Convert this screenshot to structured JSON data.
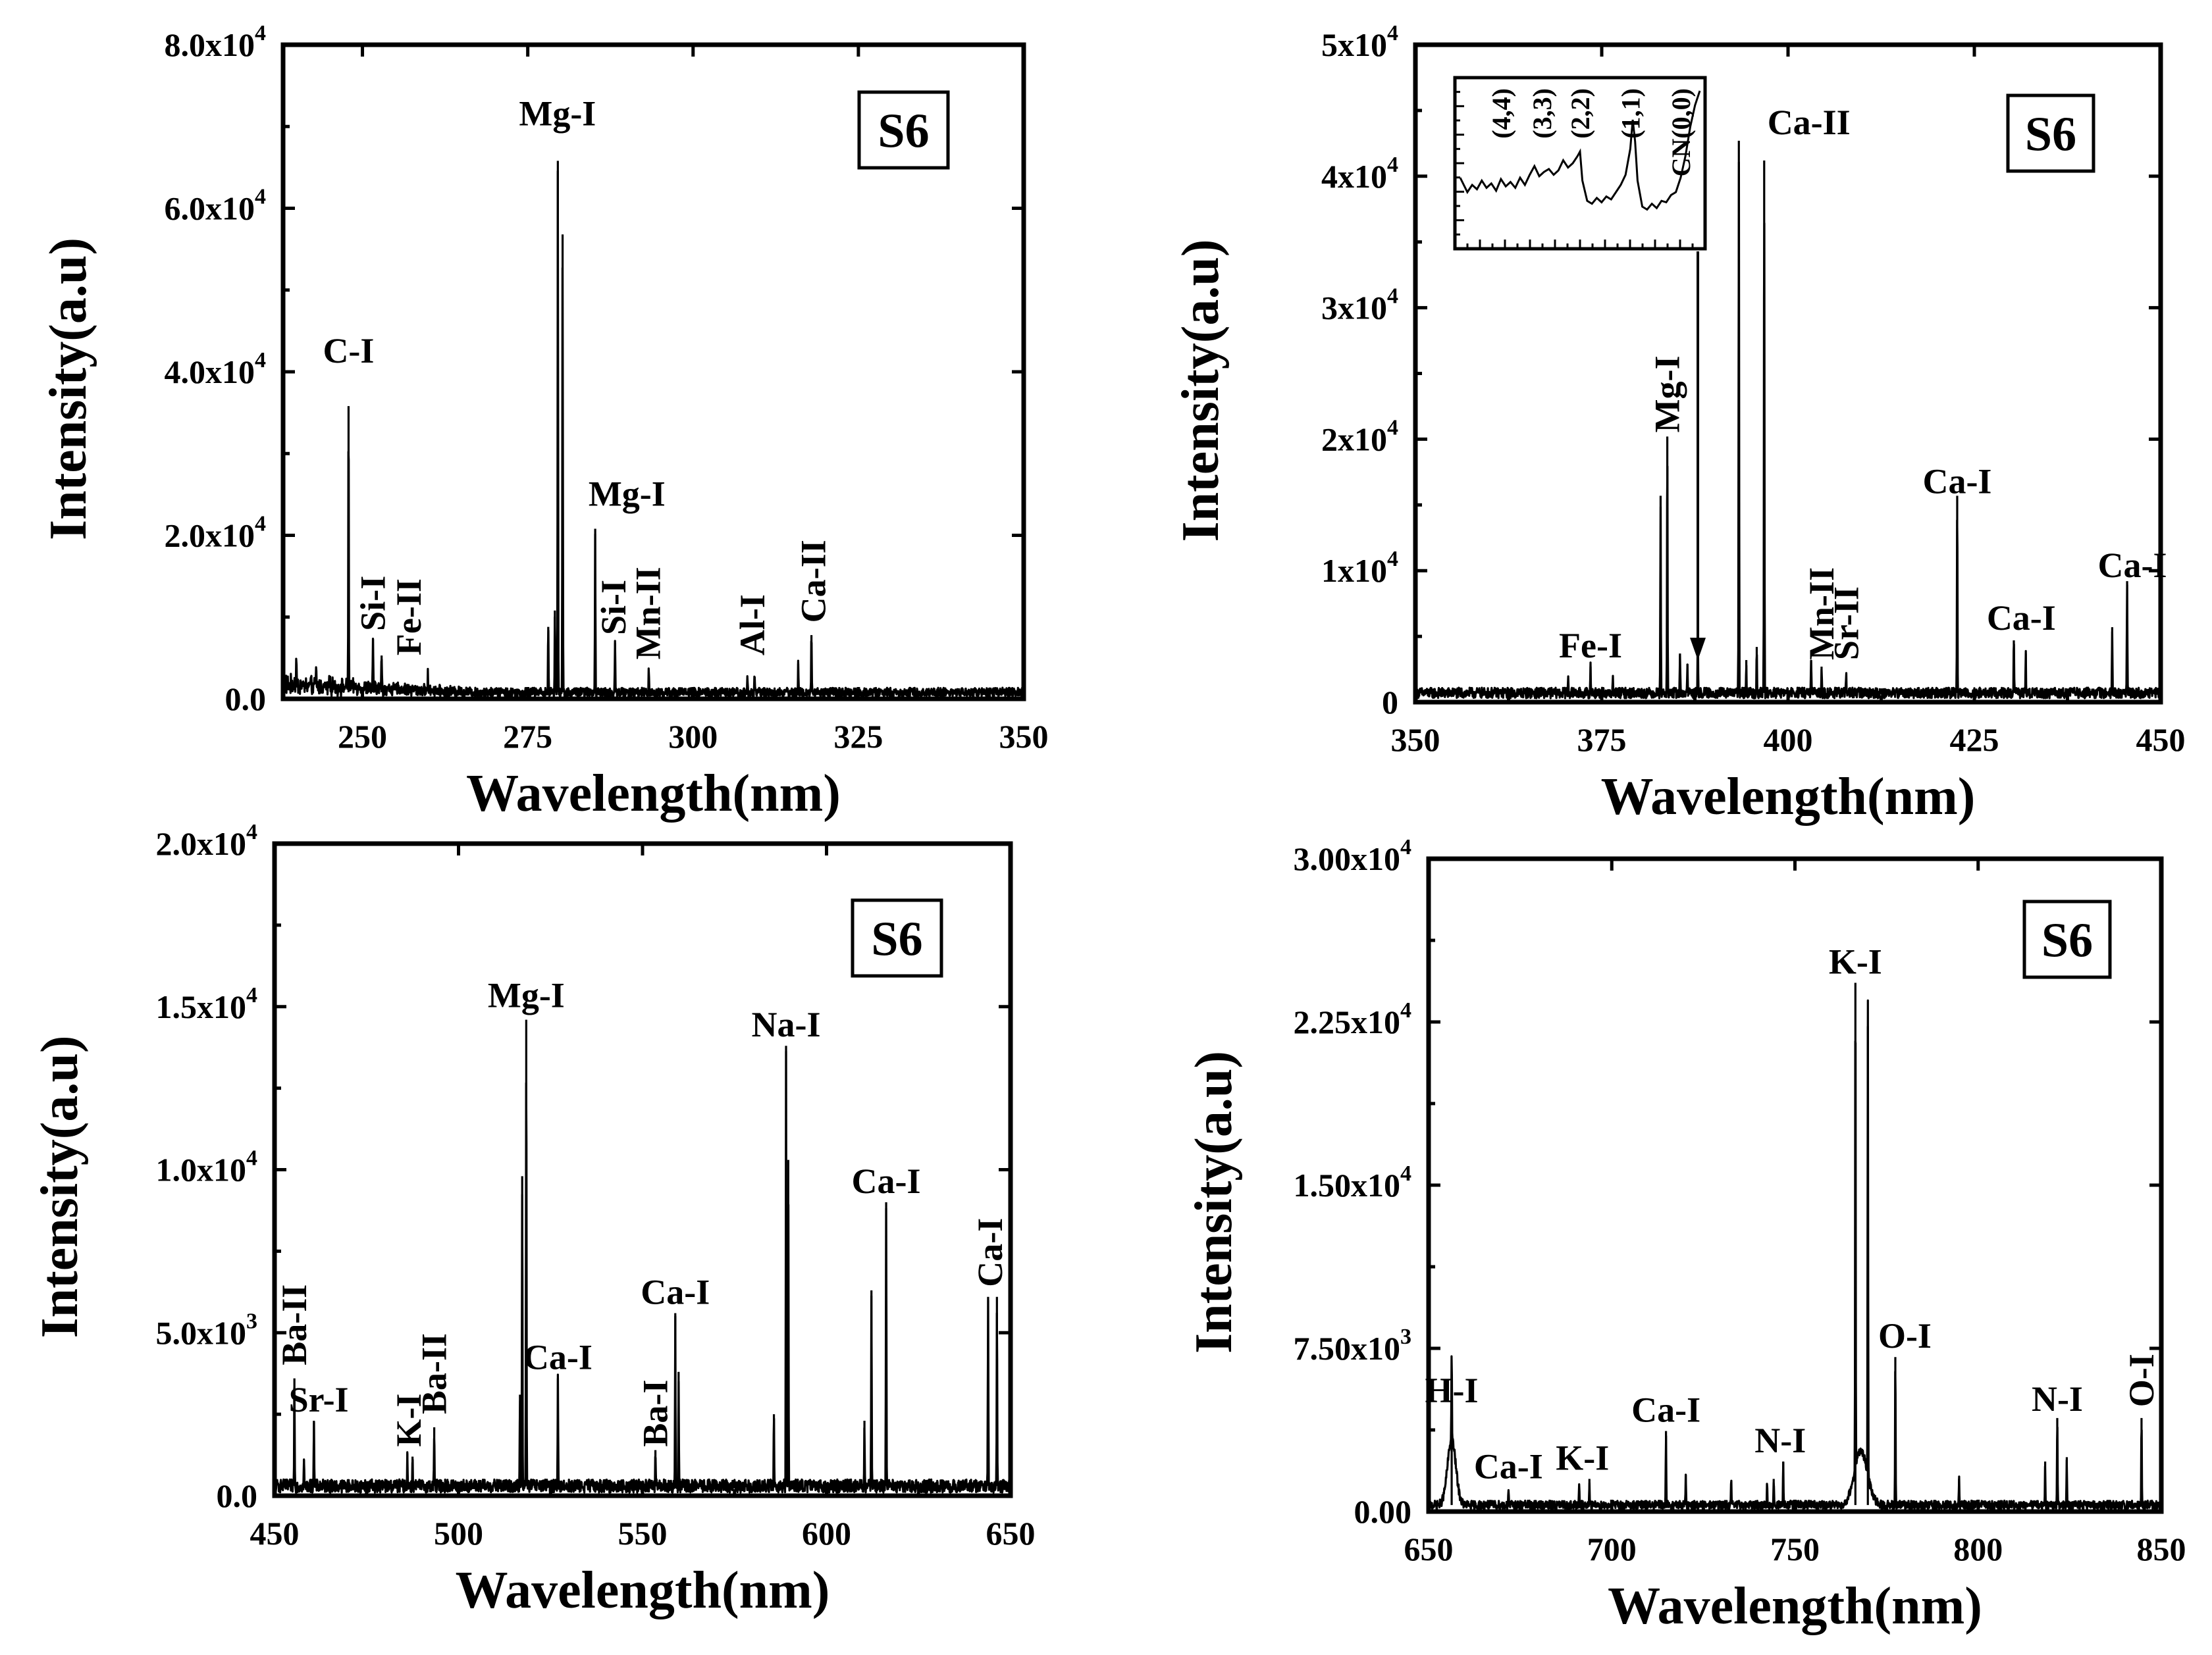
{
  "chart_data": [
    {
      "type": "line",
      "badge": "S6",
      "xlabel": "Wavelength(nm)",
      "ylabel": "Intensity(a.u)",
      "xlim": [
        238,
        350
      ],
      "ylim": [
        0,
        80000
      ],
      "xticks": [
        250,
        275,
        300,
        325,
        350
      ],
      "yticks": [
        {
          "value": 0,
          "mant": "0.0",
          "exp": ""
        },
        {
          "value": 20000,
          "mant": "2.0x10",
          "exp": "4"
        },
        {
          "value": 40000,
          "mant": "4.0x10",
          "exp": "4"
        },
        {
          "value": 60000,
          "mant": "6.0x10",
          "exp": "4"
        },
        {
          "value": 80000,
          "mant": "8.0x10",
          "exp": "4"
        }
      ],
      "baseline": 800,
      "noise": 700,
      "peaks": [
        [
          240,
          3000
        ],
        [
          243,
          2500
        ],
        [
          245,
          2000
        ],
        [
          247.9,
          35000
        ],
        [
          251.6,
          6500
        ],
        [
          252.9,
          4500
        ],
        [
          259.9,
          2000
        ],
        [
          278.1,
          8000
        ],
        [
          279.1,
          10000
        ],
        [
          279.55,
          65000
        ],
        [
          280.27,
          56000
        ],
        [
          285.2,
          20000
        ],
        [
          288.2,
          6000
        ],
        [
          293.3,
          3000
        ],
        [
          308.2,
          2000
        ],
        [
          309.3,
          2500
        ],
        [
          315.9,
          3500
        ],
        [
          317.9,
          7000
        ]
      ],
      "labels": [
        {
          "text": "C-I",
          "x": 247.9,
          "y": 40000,
          "rot": false
        },
        {
          "text": "Mg-I",
          "x": 279.5,
          "y": 69000,
          "rot": false
        },
        {
          "text": "Mg-I",
          "x": 290.0,
          "y": 22500,
          "rot": false
        },
        {
          "text": "Si-I",
          "x": 251.6,
          "y": 7500,
          "rot": true
        },
        {
          "text": "Fe-II",
          "x": 257.0,
          "y": 4500,
          "rot": true
        },
        {
          "text": "Si-I",
          "x": 288.0,
          "y": 7000,
          "rot": true
        },
        {
          "text": "Mn-II",
          "x": 293.2,
          "y": 4000,
          "rot": true
        },
        {
          "text": "Al-I",
          "x": 309.0,
          "y": 4500,
          "rot": true
        },
        {
          "text": "Ca-II",
          "x": 318.2,
          "y": 8500,
          "rot": true
        }
      ]
    },
    {
      "type": "line",
      "badge": "S6",
      "xlabel": "Wavelength(nm)",
      "ylabel": "Intensity(a.u)",
      "xlim": [
        350,
        450
      ],
      "ylim": [
        0,
        50000
      ],
      "xticks": [
        350,
        375,
        400,
        425,
        450
      ],
      "yticks": [
        {
          "value": 0,
          "mant": "0",
          "exp": ""
        },
        {
          "value": 10000,
          "mant": "1x10",
          "exp": "4"
        },
        {
          "value": 20000,
          "mant": "2x10",
          "exp": "4"
        },
        {
          "value": 30000,
          "mant": "3x10",
          "exp": "4"
        },
        {
          "value": 40000,
          "mant": "4x10",
          "exp": "4"
        },
        {
          "value": 50000,
          "mant": "5x10",
          "exp": "4"
        }
      ],
      "baseline": 700,
      "noise": 500,
      "peaks": [
        [
          370.5,
          1200
        ],
        [
          373.5,
          2000
        ],
        [
          376.5,
          1000
        ],
        [
          382.9,
          15000
        ],
        [
          383.8,
          19500
        ],
        [
          385.5,
          3000
        ],
        [
          386.5,
          2200
        ],
        [
          387.9,
          5000
        ],
        [
          393.4,
          42000
        ],
        [
          394.4,
          2500
        ],
        [
          395.8,
          3500
        ],
        [
          396.8,
          40500
        ],
        [
          403.1,
          2500
        ],
        [
          404.5,
          2000
        ],
        [
          407.8,
          1800
        ],
        [
          422.7,
          15000
        ],
        [
          430.3,
          4000
        ],
        [
          431.9,
          3000
        ],
        [
          443.5,
          5000
        ],
        [
          445.5,
          8500
        ]
      ],
      "labels": [
        {
          "text": "Fe-I",
          "x": 373.5,
          "y": 2700,
          "rot": false
        },
        {
          "text": "Mg-I",
          "x": 383.8,
          "y": 20000,
          "rot": true
        },
        {
          "text": "Ca-II",
          "x": 402.8,
          "y": 42500,
          "rot": false
        },
        {
          "text": "Mn-II",
          "x": 404.5,
          "y": 2700,
          "rot": true
        },
        {
          "text": "Sr-II",
          "x": 407.8,
          "y": 2700,
          "rot": true
        },
        {
          "text": "Ca-I",
          "x": 422.7,
          "y": 15200,
          "rot": false
        },
        {
          "text": "Ca-I",
          "x": 431.3,
          "y": 4800,
          "rot": false
        },
        {
          "text": "Ca-I",
          "x": 446.2,
          "y": 8800,
          "rot": false
        }
      ],
      "inset": {
        "xlim": [
          0,
          100
        ],
        "ylim": [
          0,
          100
        ],
        "points": [
          [
            0,
            40
          ],
          [
            3,
            30
          ],
          [
            5,
            35
          ],
          [
            7,
            32
          ],
          [
            9,
            38
          ],
          [
            11,
            33
          ],
          [
            13,
            36
          ],
          [
            15,
            31
          ],
          [
            17,
            39
          ],
          [
            19,
            34
          ],
          [
            21,
            37
          ],
          [
            23,
            33
          ],
          [
            25,
            40
          ],
          [
            27,
            35
          ],
          [
            29,
            42
          ],
          [
            31,
            48
          ],
          [
            33,
            41
          ],
          [
            35,
            44
          ],
          [
            37,
            46
          ],
          [
            39,
            42
          ],
          [
            41,
            45
          ],
          [
            43,
            52
          ],
          [
            45,
            47
          ],
          [
            47,
            50
          ],
          [
            49,
            55
          ],
          [
            50,
            58
          ],
          [
            51,
            38
          ],
          [
            53,
            24
          ],
          [
            55,
            22
          ],
          [
            57,
            26
          ],
          [
            59,
            23
          ],
          [
            61,
            27
          ],
          [
            63,
            25
          ],
          [
            65,
            30
          ],
          [
            67,
            35
          ],
          [
            69,
            42
          ],
          [
            71,
            60
          ],
          [
            72,
            80
          ],
          [
            73,
            65
          ],
          [
            74,
            38
          ],
          [
            76,
            20
          ],
          [
            78,
            18
          ],
          [
            80,
            22
          ],
          [
            82,
            19
          ],
          [
            84,
            24
          ],
          [
            86,
            23
          ],
          [
            88,
            28
          ],
          [
            90,
            30
          ],
          [
            92,
            40
          ],
          [
            94,
            55
          ],
          [
            96,
            75
          ],
          [
            98,
            90
          ],
          [
            100,
            100
          ]
        ],
        "labels": [
          {
            "text": "(4,4)",
            "x": 17
          },
          {
            "text": "(3,3)",
            "x": 34
          },
          {
            "text": "(2,2)",
            "x": 50
          },
          {
            "text": "(1,1)",
            "x": 71
          },
          {
            "text": "CN(0,0)",
            "x": 92
          }
        ]
      }
    },
    {
      "type": "line",
      "badge": "S6",
      "xlabel": "Wavelength(nm)",
      "ylabel": "Intensity(a.u)",
      "xlim": [
        450,
        650
      ],
      "ylim": [
        0,
        20000
      ],
      "xticks": [
        450,
        500,
        550,
        600,
        650
      ],
      "yticks": [
        {
          "value": 0,
          "mant": "0.0",
          "exp": ""
        },
        {
          "value": 5000,
          "mant": "5.0x10",
          "exp": "3"
        },
        {
          "value": 10000,
          "mant": "1.0x10",
          "exp": "4"
        },
        {
          "value": 15000,
          "mant": "1.5x10",
          "exp": "4"
        },
        {
          "value": 20000,
          "mant": "2.0x10",
          "exp": "4"
        }
      ],
      "baseline": 300,
      "noise": 250,
      "peaks": [
        [
          455.4,
          3300
        ],
        [
          458.0,
          800
        ],
        [
          460.7,
          2000
        ],
        [
          486.1,
          1000
        ],
        [
          487.5,
          900
        ],
        [
          493.4,
          1800
        ],
        [
          516.7,
          2800
        ],
        [
          517.3,
          9500
        ],
        [
          518.4,
          14300
        ],
        [
          527.0,
          3300
        ],
        [
          553.5,
          1100
        ],
        [
          558.9,
          5300
        ],
        [
          559.8,
          3500
        ],
        [
          585.7,
          2200
        ],
        [
          589.0,
          13500
        ],
        [
          589.6,
          10000
        ],
        [
          610.3,
          2000
        ],
        [
          612.2,
          6000
        ],
        [
          616.2,
          8700
        ],
        [
          643.9,
          5800
        ],
        [
          646.3,
          5800
        ]
      ],
      "labels": [
        {
          "text": "Ba-II",
          "x": 455.4,
          "y": 3800,
          "rot": true
        },
        {
          "text": "Sr-I",
          "x": 462.0,
          "y": 2300,
          "rot": false
        },
        {
          "text": "K-I",
          "x": 486.5,
          "y": 1300,
          "rot": true
        },
        {
          "text": "Ba-II",
          "x": 493.4,
          "y": 2300,
          "rot": true
        },
        {
          "text": "Mg-I",
          "x": 518.4,
          "y": 14700,
          "rot": false
        },
        {
          "text": "Ca-I",
          "x": 527.0,
          "y": 3600,
          "rot": false
        },
        {
          "text": "Ba-I",
          "x": 553.5,
          "y": 1300,
          "rot": true
        },
        {
          "text": "Ca-I",
          "x": 558.9,
          "y": 5600,
          "rot": false
        },
        {
          "text": "Na-I",
          "x": 589.0,
          "y": 13800,
          "rot": false
        },
        {
          "text": "Ca-I",
          "x": 616.2,
          "y": 9000,
          "rot": false
        },
        {
          "text": "Ca-I",
          "x": 644.5,
          "y": 6200,
          "rot": true
        }
      ]
    },
    {
      "type": "line",
      "badge": "S6",
      "xlabel": "Wavelength(nm)",
      "ylabel": "Intensity(a.u)",
      "xlim": [
        650,
        850
      ],
      "ylim": [
        0,
        30000
      ],
      "xticks": [
        650,
        700,
        750,
        800,
        850
      ],
      "yticks": [
        {
          "value": 0,
          "mant": "0.00",
          "exp": ""
        },
        {
          "value": 7500,
          "mant": "7.50x10",
          "exp": "3"
        },
        {
          "value": 15000,
          "mant": "1.50x10",
          "exp": "4"
        },
        {
          "value": 22500,
          "mant": "2.25x10",
          "exp": "4"
        },
        {
          "value": 30000,
          "mant": "3.00x10",
          "exp": "4"
        }
      ],
      "baseline": 300,
      "noise": 250,
      "peaks": [
        [
          656.3,
          4300
        ],
        [
          671.8,
          800
        ],
        [
          691.1,
          900
        ],
        [
          693.9,
          1200
        ],
        [
          714.8,
          3400
        ],
        [
          720.2,
          1400
        ],
        [
          732.6,
          1100
        ],
        [
          742.4,
          1000
        ],
        [
          744.2,
          1200
        ],
        [
          746.8,
          2000
        ],
        [
          766.5,
          24000
        ],
        [
          769.9,
          22000
        ],
        [
          777.4,
          6800
        ],
        [
          794.8,
          1200
        ],
        [
          818.3,
          2000
        ],
        [
          821.6,
          4000
        ],
        [
          824.2,
          2200
        ],
        [
          844.6,
          4000
        ]
      ],
      "broad": [
        [
          656.3,
          3000,
          1.6
        ],
        [
          768,
          2500,
          2.5
        ]
      ],
      "labels": [
        {
          "text": "H-I",
          "x": 656.3,
          "y": 4600,
          "rot": false
        },
        {
          "text": "Ca-I",
          "x": 671.8,
          "y": 1100,
          "rot": false
        },
        {
          "text": "K-I",
          "x": 692.0,
          "y": 1500,
          "rot": false
        },
        {
          "text": "Ca-I",
          "x": 714.8,
          "y": 3700,
          "rot": false
        },
        {
          "text": "N-I",
          "x": 746.0,
          "y": 2300,
          "rot": false
        },
        {
          "text": "K-I",
          "x": 766.5,
          "y": 24300,
          "rot": false
        },
        {
          "text": "O-I",
          "x": 780.0,
          "y": 7100,
          "rot": false
        },
        {
          "text": "N-I",
          "x": 821.6,
          "y": 4200,
          "rot": false
        },
        {
          "text": "O-I",
          "x": 844.6,
          "y": 4500,
          "rot": true
        }
      ]
    }
  ]
}
